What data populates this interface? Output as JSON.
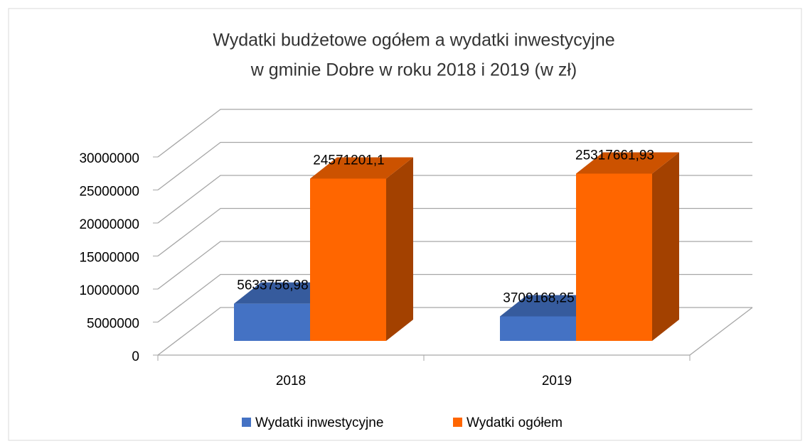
{
  "chart_data": {
    "type": "bar3d",
    "title": [
      "Wydatki budżetowe ogółem a wydatki inwestycyjne",
      "w gminie Dobre w roku 2018 i 2019 (w zł)"
    ],
    "categories": [
      "2018",
      "2019"
    ],
    "series": [
      {
        "name": "Wydatki inwestycyjne",
        "color": "#4472c4",
        "values": [
          5633756.98,
          3709168.25
        ],
        "value_labels": [
          "5633756,98",
          "3709168,25"
        ]
      },
      {
        "name": "Wydatki ogółem",
        "color": "#ff6600",
        "values": [
          24571201.1,
          25317661.93
        ],
        "value_labels": [
          "24571201,1",
          "25317661,93"
        ]
      }
    ],
    "ylim": [
      0,
      30000000
    ],
    "yticks": [
      0,
      5000000,
      10000000,
      15000000,
      20000000,
      25000000,
      30000000
    ],
    "grid": true,
    "legend": "bottom"
  }
}
